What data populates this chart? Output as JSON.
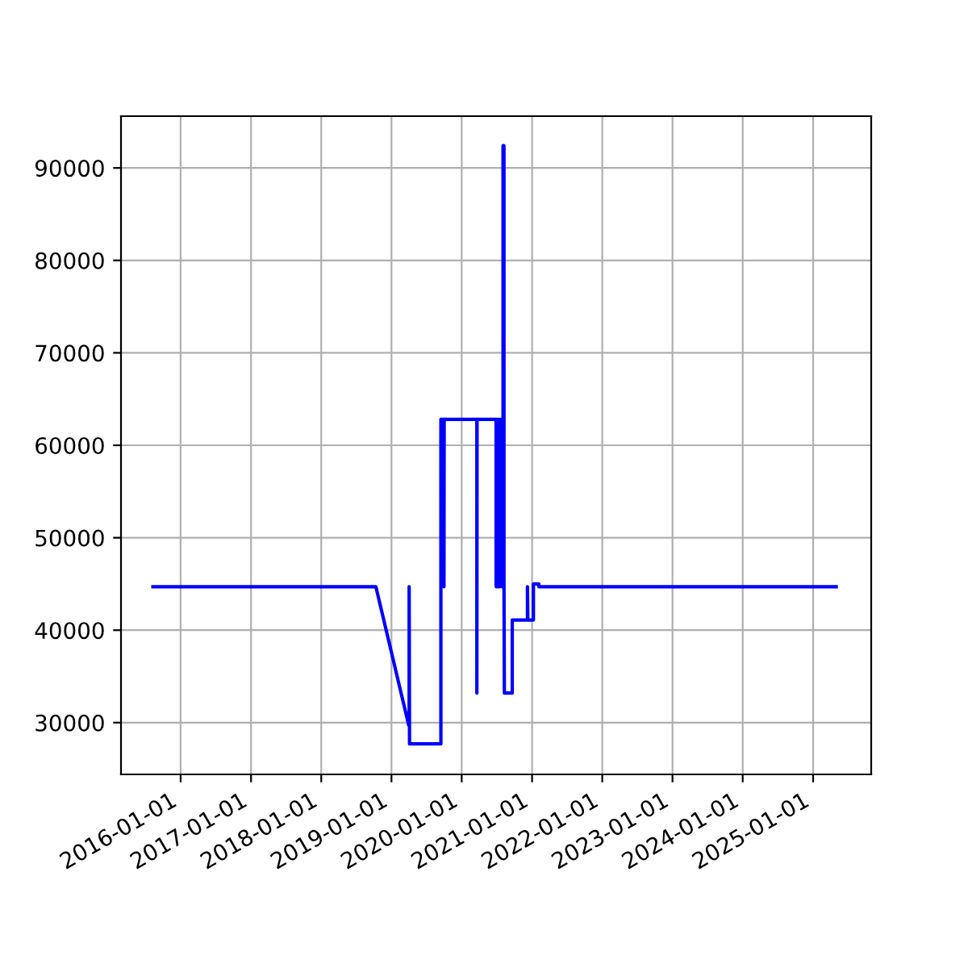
{
  "chart_data": {
    "type": "line",
    "x": [
      "2015-08-10",
      "2018-10-12",
      "2019-04-01",
      "2019-04-03",
      "2019-04-03",
      "2019-04-05",
      "2019-09-15",
      "2019-09-15",
      "2019-10-01",
      "2019-10-01",
      "2019-10-02",
      "2020-03-20",
      "2020-03-20",
      "2020-03-21",
      "2020-06-28",
      "2020-06-28",
      "2020-07-03",
      "2020-07-03",
      "2020-07-08",
      "2020-07-08",
      "2020-07-13",
      "2020-07-13",
      "2020-07-18",
      "2020-07-23",
      "2020-07-28",
      "2020-08-03",
      "2020-08-03",
      "2020-08-08",
      "2020-08-08",
      "2020-08-10",
      "2020-09-20",
      "2020-09-20",
      "2020-12-08",
      "2020-12-08",
      "2020-12-10",
      "2021-01-08",
      "2021-01-08",
      "2021-02-05",
      "2021-02-05",
      "2025-05-01"
    ],
    "series": [
      {
        "color": "#0000ff",
        "values": [
          44700,
          44700,
          29700,
          29700,
          44700,
          27700,
          27700,
          62800,
          62800,
          44700,
          62800,
          62800,
          33200,
          62800,
          62800,
          44700,
          44700,
          62800,
          62800,
          44700,
          44700,
          62800,
          44700,
          62800,
          44700,
          44700,
          92400,
          92400,
          44700,
          33200,
          33200,
          41100,
          41100,
          44700,
          41100,
          41100,
          45000,
          45000,
          44700,
          44700
        ]
      }
    ],
    "xlim": [
      "2015-02-25",
      "2025-10-30"
    ],
    "xticks": [
      {
        "value": "2016-01-01",
        "label": "2016-01-01"
      },
      {
        "value": "2017-01-01",
        "label": "2017-01-01"
      },
      {
        "value": "2018-01-01",
        "label": "2018-01-01"
      },
      {
        "value": "2019-01-01",
        "label": "2019-01-01"
      },
      {
        "value": "2020-01-01",
        "label": "2020-01-01"
      },
      {
        "value": "2021-01-01",
        "label": "2021-01-01"
      },
      {
        "value": "2022-01-01",
        "label": "2022-01-01"
      },
      {
        "value": "2023-01-01",
        "label": "2023-01-01"
      },
      {
        "value": "2024-01-01",
        "label": "2024-01-01"
      },
      {
        "value": "2025-01-01",
        "label": "2025-01-01"
      }
    ],
    "ylim": [
      24400,
      95600
    ],
    "yticks": [
      30000,
      40000,
      50000,
      60000,
      70000,
      80000,
      90000
    ],
    "grid": true
  }
}
